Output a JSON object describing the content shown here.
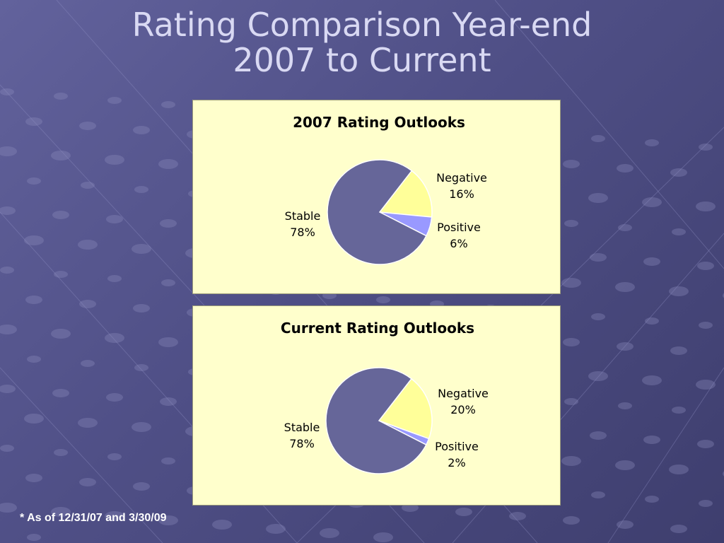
{
  "slide": {
    "title_line1": "Rating Comparison Year-end",
    "title_line2": "2007 to Current",
    "footnote": "* As of 12/31/07 and 3/30/09"
  },
  "colors": {
    "stable": "#666699",
    "negative": "#ffff99",
    "positive": "#9999ff",
    "panel": "#ffffcc"
  },
  "chart_data": [
    {
      "type": "pie",
      "title": "2007 Rating Outlooks",
      "slices": [
        {
          "label": "Negative",
          "value": 16,
          "value_label": "16%"
        },
        {
          "label": "Positive",
          "value": 6,
          "value_label": "6%"
        },
        {
          "label": "Stable",
          "value": 78,
          "value_label": "78%"
        }
      ]
    },
    {
      "type": "pie",
      "title": "Current Rating Outlooks",
      "slices": [
        {
          "label": "Negative",
          "value": 20,
          "value_label": "20%"
        },
        {
          "label": "Positive",
          "value": 2,
          "value_label": "2%"
        },
        {
          "label": "Stable",
          "value": 78,
          "value_label": "78%"
        }
      ]
    }
  ]
}
